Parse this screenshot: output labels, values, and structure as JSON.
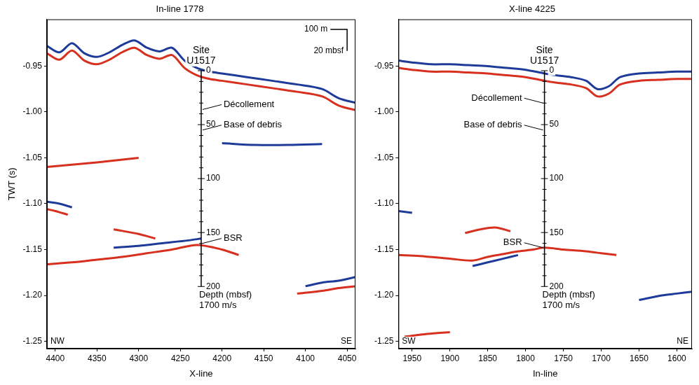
{
  "chart_data": [
    {
      "type": "line",
      "title": "In-line 1778",
      "x_label": "X-line",
      "y_label": "TWT (s)",
      "xlim": [
        4410,
        4040
      ],
      "xticks": [
        4400,
        4350,
        4300,
        4250,
        4200,
        4150,
        4100,
        4050
      ],
      "ylim": [
        -1.258,
        -0.899
      ],
      "yticks": [
        {
          "value": -0.95,
          "label": "-0.95"
        },
        {
          "value": -1.0,
          "label": "-1.00"
        },
        {
          "value": -1.05,
          "label": "-1.05"
        },
        {
          "value": -1.1,
          "label": "-1.10"
        },
        {
          "value": -1.15,
          "label": "-1.15"
        },
        {
          "value": -1.2,
          "label": "-1.20"
        },
        {
          "value": -1.25,
          "label": "-1.25"
        }
      ],
      "grid": false,
      "series": [
        {
          "color": "#1f3b99",
          "x": [
            4410,
            4395,
            4380,
            4365,
            4350,
            4335,
            4320,
            4305,
            4290,
            4275,
            4260,
            4245,
            4230,
            4215,
            4200,
            4170,
            4140,
            4110,
            4080,
            4060,
            4040
          ],
          "values": [
            -0.928,
            -0.935,
            -0.925,
            -0.936,
            -0.94,
            -0.935,
            -0.927,
            -0.922,
            -0.93,
            -0.934,
            -0.93,
            -0.944,
            -0.952,
            -0.956,
            -0.958,
            -0.962,
            -0.966,
            -0.97,
            -0.975,
            -0.985,
            -0.99
          ]
        },
        {
          "color": "#d7301f",
          "x": [
            4410,
            4395,
            4380,
            4365,
            4350,
            4335,
            4320,
            4305,
            4290,
            4275,
            4260,
            4245,
            4230,
            4215,
            4200,
            4170,
            4140,
            4110,
            4080,
            4060,
            4040
          ],
          "values": [
            -0.936,
            -0.943,
            -0.933,
            -0.944,
            -0.948,
            -0.943,
            -0.935,
            -0.93,
            -0.938,
            -0.942,
            -0.938,
            -0.952,
            -0.96,
            -0.964,
            -0.966,
            -0.97,
            -0.974,
            -0.978,
            -0.983,
            -0.993,
            -0.998
          ]
        },
        {
          "color": "#d7301f",
          "x": [
            4410,
            4380,
            4350,
            4320,
            4290,
            4260,
            4230,
            4200,
            4180
          ],
          "values": [
            -1.166,
            -1.164,
            -1.161,
            -1.158,
            -1.154,
            -1.15,
            -1.145,
            -1.15,
            -1.156
          ]
        },
        {
          "color": "#1f3b99",
          "x": [
            4330,
            4300,
            4270,
            4240,
            4225
          ],
          "values": [
            -1.148,
            -1.146,
            -1.143,
            -1.14,
            -1.138
          ]
        },
        {
          "color": "#d7301f",
          "x": [
            4410,
            4400,
            4385
          ],
          "values": [
            -1.106,
            -1.108,
            -1.112
          ]
        },
        {
          "color": "#1f3b99",
          "x": [
            4410,
            4395,
            4380
          ],
          "values": [
            -1.098,
            -1.1,
            -1.104
          ]
        },
        {
          "color": "#d7301f",
          "x": [
            4330,
            4300,
            4280
          ],
          "values": [
            -1.128,
            -1.133,
            -1.138
          ]
        },
        {
          "color": "#1f3b99",
          "x": [
            4100,
            4080,
            4060,
            4040
          ],
          "values": [
            -1.19,
            -1.186,
            -1.184,
            -1.18
          ]
        },
        {
          "color": "#d7301f",
          "x": [
            4110,
            4080,
            4060,
            4040
          ],
          "values": [
            -1.198,
            -1.195,
            -1.192,
            -1.19
          ]
        },
        {
          "color": "#1f3b99",
          "x": [
            4200,
            4160,
            4120,
            4080
          ],
          "values": [
            -1.034,
            -1.036,
            -1.036,
            -1.035
          ]
        },
        {
          "color": "#d7301f",
          "x": [
            4410,
            4350,
            4300
          ],
          "values": [
            -1.06,
            -1.055,
            -1.05
          ]
        }
      ],
      "site": {
        "label": "Site U1517",
        "x": 4225,
        "seafloor_twt": -0.955,
        "depth_ticks": [
          0,
          10,
          20,
          30,
          40,
          50,
          60,
          70,
          80,
          90,
          100,
          110,
          120,
          130,
          140,
          150,
          160,
          170,
          180,
          190,
          200
        ],
        "depth_labels": [
          0,
          50,
          100,
          150,
          200
        ],
        "depth_label": "Depth (mbsf)",
        "velocity": 1700,
        "velocity_label": "1700 m/s",
        "picks": [
          {
            "label": "Décollement",
            "depth": 36
          },
          {
            "label": "Base of debris",
            "depth": 55
          },
          {
            "label": "BSR",
            "depth": 160
          }
        ]
      },
      "corners": [
        "NW",
        "SE"
      ],
      "scale_bar": {
        "label": "100 m",
        "x": 4050,
        "x_span": 20,
        "twt": -0.91,
        "depth_label": "20 mbsf",
        "depth": 20
      }
    },
    {
      "type": "line",
      "title": "X-line 4225",
      "x_label": "In-line",
      "xlim": [
        1968,
        1580
      ],
      "xticks": [
        1950,
        1900,
        1850,
        1800,
        1750,
        1700,
        1650,
        1600
      ],
      "ylim": [
        -1.258,
        -0.899
      ],
      "yticks": [
        {
          "value": -0.95,
          "label": "-0.95"
        },
        {
          "value": -1.0,
          "label": "-1.00"
        },
        {
          "value": -1.05,
          "label": "-1.05"
        },
        {
          "value": -1.1,
          "label": "-1.10"
        },
        {
          "value": -1.15,
          "label": "-1.15"
        },
        {
          "value": -1.2,
          "label": "-1.20"
        },
        {
          "value": -1.25,
          "label": "-1.25"
        }
      ],
      "grid": false,
      "series": [
        {
          "color": "#1f3b99",
          "x": [
            1968,
            1950,
            1925,
            1900,
            1875,
            1850,
            1825,
            1800,
            1775,
            1760,
            1740,
            1720,
            1705,
            1690,
            1675,
            1650,
            1625,
            1600,
            1580
          ],
          "values": [
            -0.944,
            -0.946,
            -0.948,
            -0.948,
            -0.949,
            -0.95,
            -0.952,
            -0.954,
            -0.958,
            -0.96,
            -0.962,
            -0.966,
            -0.975,
            -0.972,
            -0.962,
            -0.958,
            -0.957,
            -0.956,
            -0.956
          ]
        },
        {
          "color": "#d7301f",
          "x": [
            1968,
            1950,
            1925,
            1900,
            1875,
            1850,
            1825,
            1800,
            1775,
            1760,
            1740,
            1720,
            1705,
            1690,
            1675,
            1650,
            1625,
            1600,
            1580
          ],
          "values": [
            -0.952,
            -0.954,
            -0.956,
            -0.956,
            -0.957,
            -0.958,
            -0.96,
            -0.962,
            -0.966,
            -0.968,
            -0.97,
            -0.974,
            -0.983,
            -0.98,
            -0.97,
            -0.966,
            -0.965,
            -0.964,
            -0.964
          ]
        },
        {
          "color": "#d7301f",
          "x": [
            1968,
            1940,
            1900,
            1870,
            1850,
            1830,
            1810,
            1790,
            1775,
            1750,
            1720,
            1700,
            1680
          ],
          "values": [
            -1.156,
            -1.157,
            -1.16,
            -1.162,
            -1.158,
            -1.155,
            -1.152,
            -1.15,
            -1.148,
            -1.15,
            -1.152,
            -1.154,
            -1.156
          ]
        },
        {
          "color": "#1f3b99",
          "x": [
            1870,
            1850,
            1830,
            1810
          ],
          "values": [
            -1.168,
            -1.164,
            -1.16,
            -1.156
          ]
        },
        {
          "color": "#d7301f",
          "x": [
            1880,
            1860,
            1840,
            1820
          ],
          "values": [
            -1.132,
            -1.128,
            -1.126,
            -1.13
          ]
        },
        {
          "color": "#1f3b99",
          "x": [
            1650,
            1620,
            1600,
            1580
          ],
          "values": [
            -1.205,
            -1.2,
            -1.198,
            -1.196
          ]
        },
        {
          "color": "#d7301f",
          "x": [
            1960,
            1930,
            1900
          ],
          "values": [
            -1.245,
            -1.242,
            -1.24
          ]
        },
        {
          "color": "#1f3b99",
          "x": [
            1968,
            1950
          ],
          "values": [
            -1.108,
            -1.11
          ]
        }
      ],
      "site": {
        "label": "Site U1517",
        "x": 1775,
        "seafloor_twt": -0.955,
        "depth_ticks": [
          0,
          10,
          20,
          30,
          40,
          50,
          60,
          70,
          80,
          90,
          100,
          110,
          120,
          130,
          140,
          150,
          160,
          170,
          180,
          190,
          200
        ],
        "depth_labels": [
          0,
          50,
          100,
          150,
          200
        ],
        "depth_label": "Depth (mbsf)",
        "velocity": 1700,
        "velocity_label": "1700 m/s",
        "picks": [
          {
            "label": "Décollement",
            "depth": 30
          },
          {
            "label": "Base of debris",
            "depth": 55
          },
          {
            "label": "BSR",
            "depth": 164
          }
        ]
      },
      "corners": [
        "SW",
        "NE"
      ]
    }
  ]
}
